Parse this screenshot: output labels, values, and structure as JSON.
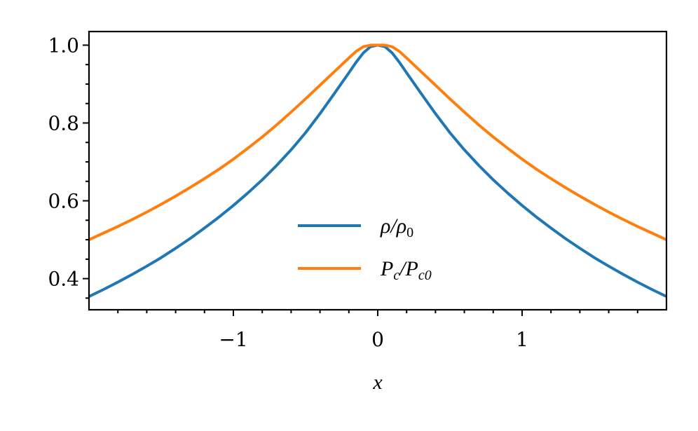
{
  "chart_data": {
    "type": "line",
    "xlabel": "x",
    "ylabel": "",
    "xlim": [
      -2.0,
      2.0
    ],
    "ylim": [
      0.32,
      1.035
    ],
    "x_ticks": [
      -1,
      0,
      1
    ],
    "x_tick_labels": [
      "−1",
      "0",
      "1"
    ],
    "y_ticks": [
      0.4,
      0.6,
      0.8,
      1.0
    ],
    "y_tick_labels": [
      "0.4",
      "0.6",
      "0.8",
      "1.0"
    ],
    "legend_position": "lower-center",
    "grid": false,
    "x": [
      -2.0,
      -1.9,
      -1.8,
      -1.7,
      -1.6,
      -1.5,
      -1.4,
      -1.3,
      -1.2,
      -1.1,
      -1.0,
      -0.9,
      -0.8,
      -0.7,
      -0.6,
      -0.5,
      -0.4,
      -0.3,
      -0.2,
      -0.15,
      -0.1,
      -0.05,
      0.0,
      0.05,
      0.1,
      0.15,
      0.2,
      0.3,
      0.4,
      0.5,
      0.6,
      0.7,
      0.8,
      0.9,
      1.0,
      1.1,
      1.2,
      1.3,
      1.4,
      1.5,
      1.6,
      1.7,
      1.8,
      1.9,
      2.0
    ],
    "series": [
      {
        "name_main": "ρ/ρ",
        "name_sub": "0",
        "color": "#1f77b4",
        "values": [
          0.354,
          0.372,
          0.391,
          0.411,
          0.432,
          0.454,
          0.478,
          0.503,
          0.53,
          0.558,
          0.588,
          0.62,
          0.654,
          0.691,
          0.731,
          0.775,
          0.824,
          0.876,
          0.929,
          0.956,
          0.98,
          0.996,
          1.0,
          0.996,
          0.98,
          0.956,
          0.929,
          0.876,
          0.824,
          0.775,
          0.731,
          0.691,
          0.654,
          0.62,
          0.588,
          0.558,
          0.53,
          0.503,
          0.478,
          0.454,
          0.432,
          0.411,
          0.391,
          0.372,
          0.354
        ]
      },
      {
        "name_main": "P",
        "name_parts": [
          "P",
          "c",
          "/P",
          "c0"
        ],
        "color": "#ff7f0e",
        "values": [
          0.5,
          0.517,
          0.534,
          0.552,
          0.571,
          0.591,
          0.612,
          0.634,
          0.657,
          0.681,
          0.707,
          0.735,
          0.764,
          0.795,
          0.828,
          0.862,
          0.897,
          0.932,
          0.967,
          0.984,
          0.996,
          1.0,
          1.0,
          1.0,
          0.996,
          0.984,
          0.967,
          0.932,
          0.897,
          0.862,
          0.828,
          0.795,
          0.764,
          0.735,
          0.707,
          0.681,
          0.657,
          0.634,
          0.612,
          0.591,
          0.571,
          0.552,
          0.534,
          0.517,
          0.5
        ]
      }
    ]
  }
}
